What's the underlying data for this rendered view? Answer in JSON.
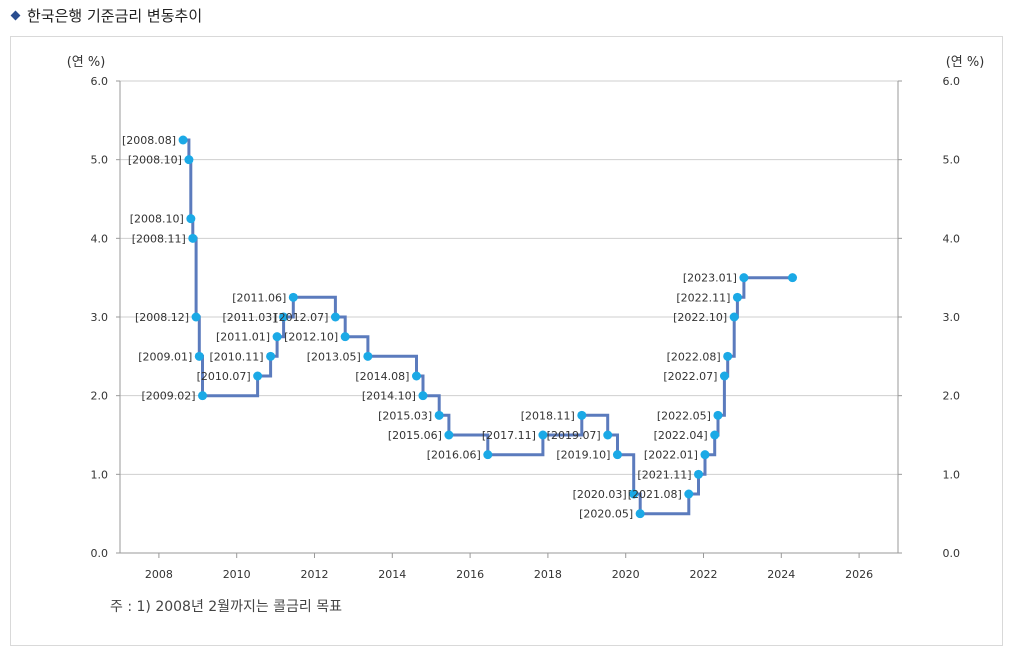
{
  "header": {
    "title": "한국은행 기준금리 변동추이"
  },
  "footnote": "주 : 1) 2008년 2월까지는 콜금리 목표",
  "chart_data": {
    "type": "line",
    "step": true,
    "y_unit_left": "(연 %)",
    "y_unit_right": "(연 %)",
    "xlim": [
      2007,
      2027
    ],
    "ylim": [
      0,
      6
    ],
    "x_ticks": [
      "2008",
      "2010",
      "2012",
      "2014",
      "2016",
      "2018",
      "2020",
      "2022",
      "2024",
      "2026"
    ],
    "y_ticks": [
      "0.0",
      "1.0",
      "2.0",
      "3.0",
      "4.0",
      "5.0",
      "6.0"
    ],
    "grid": true,
    "line_color": "#5b7bbd",
    "point_color": "#1ba9e6",
    "points": [
      {
        "label": "[2008.08]",
        "date": "2008-08",
        "value": 5.25
      },
      {
        "label": "[2008.10]",
        "date": "2008-10-09",
        "value": 5.0
      },
      {
        "label": "[2008.10]",
        "date": "2008-10-27",
        "value": 4.25
      },
      {
        "label": "[2008.11]",
        "date": "2008-11",
        "value": 4.0
      },
      {
        "label": "[2008.12]",
        "date": "2008-12",
        "value": 3.0
      },
      {
        "label": "[2009.01]",
        "date": "2009-01",
        "value": 2.5
      },
      {
        "label": "[2009.02]",
        "date": "2009-02",
        "value": 2.0
      },
      {
        "label": "[2010.07]",
        "date": "2010-07",
        "value": 2.25
      },
      {
        "label": "[2010.11]",
        "date": "2010-11",
        "value": 2.5
      },
      {
        "label": "[2011.01]",
        "date": "2011-01",
        "value": 2.75
      },
      {
        "label": "[2011.03]",
        "date": "2011-03",
        "value": 3.0
      },
      {
        "label": "[2011.06]",
        "date": "2011-06",
        "value": 3.25
      },
      {
        "label": "[2012.07]",
        "date": "2012-07",
        "value": 3.0
      },
      {
        "label": "[2012.10]",
        "date": "2012-10",
        "value": 2.75
      },
      {
        "label": "[2013.05]",
        "date": "2013-05",
        "value": 2.5
      },
      {
        "label": "[2014.08]",
        "date": "2014-08",
        "value": 2.25
      },
      {
        "label": "[2014.10]",
        "date": "2014-10",
        "value": 2.0
      },
      {
        "label": "[2015.03]",
        "date": "2015-03",
        "value": 1.75
      },
      {
        "label": "[2015.06]",
        "date": "2015-06",
        "value": 1.5
      },
      {
        "label": "[2016.06]",
        "date": "2016-06",
        "value": 1.25
      },
      {
        "label": "[2017.11]",
        "date": "2017-11",
        "value": 1.5
      },
      {
        "label": "[2018.11]",
        "date": "2018-11",
        "value": 1.75
      },
      {
        "label": "[2019.07]",
        "date": "2019-07",
        "value": 1.5
      },
      {
        "label": "[2019.10]",
        "date": "2019-10",
        "value": 1.25
      },
      {
        "label": "[2020.03]",
        "date": "2020-03",
        "value": 0.75
      },
      {
        "label": "[2020.05]",
        "date": "2020-05",
        "value": 0.5
      },
      {
        "label": "[2021.08]",
        "date": "2021-08",
        "value": 0.75
      },
      {
        "label": "[2021.11]",
        "date": "2021-11",
        "value": 1.0
      },
      {
        "label": "[2022.01]",
        "date": "2022-01",
        "value": 1.25
      },
      {
        "label": "[2022.04]",
        "date": "2022-04",
        "value": 1.5
      },
      {
        "label": "[2022.05]",
        "date": "2022-05",
        "value": 1.75
      },
      {
        "label": "[2022.07]",
        "date": "2022-07",
        "value": 2.25
      },
      {
        "label": "[2022.08]",
        "date": "2022-08",
        "value": 2.5
      },
      {
        "label": "[2022.10]",
        "date": "2022-10",
        "value": 3.0
      },
      {
        "label": "[2022.11]",
        "date": "2022-11",
        "value": 3.25
      },
      {
        "label": "[2023.01]",
        "date": "2023-01",
        "value": 3.5
      },
      {
        "label": "",
        "date": "2024-04",
        "value": 3.5
      }
    ]
  }
}
